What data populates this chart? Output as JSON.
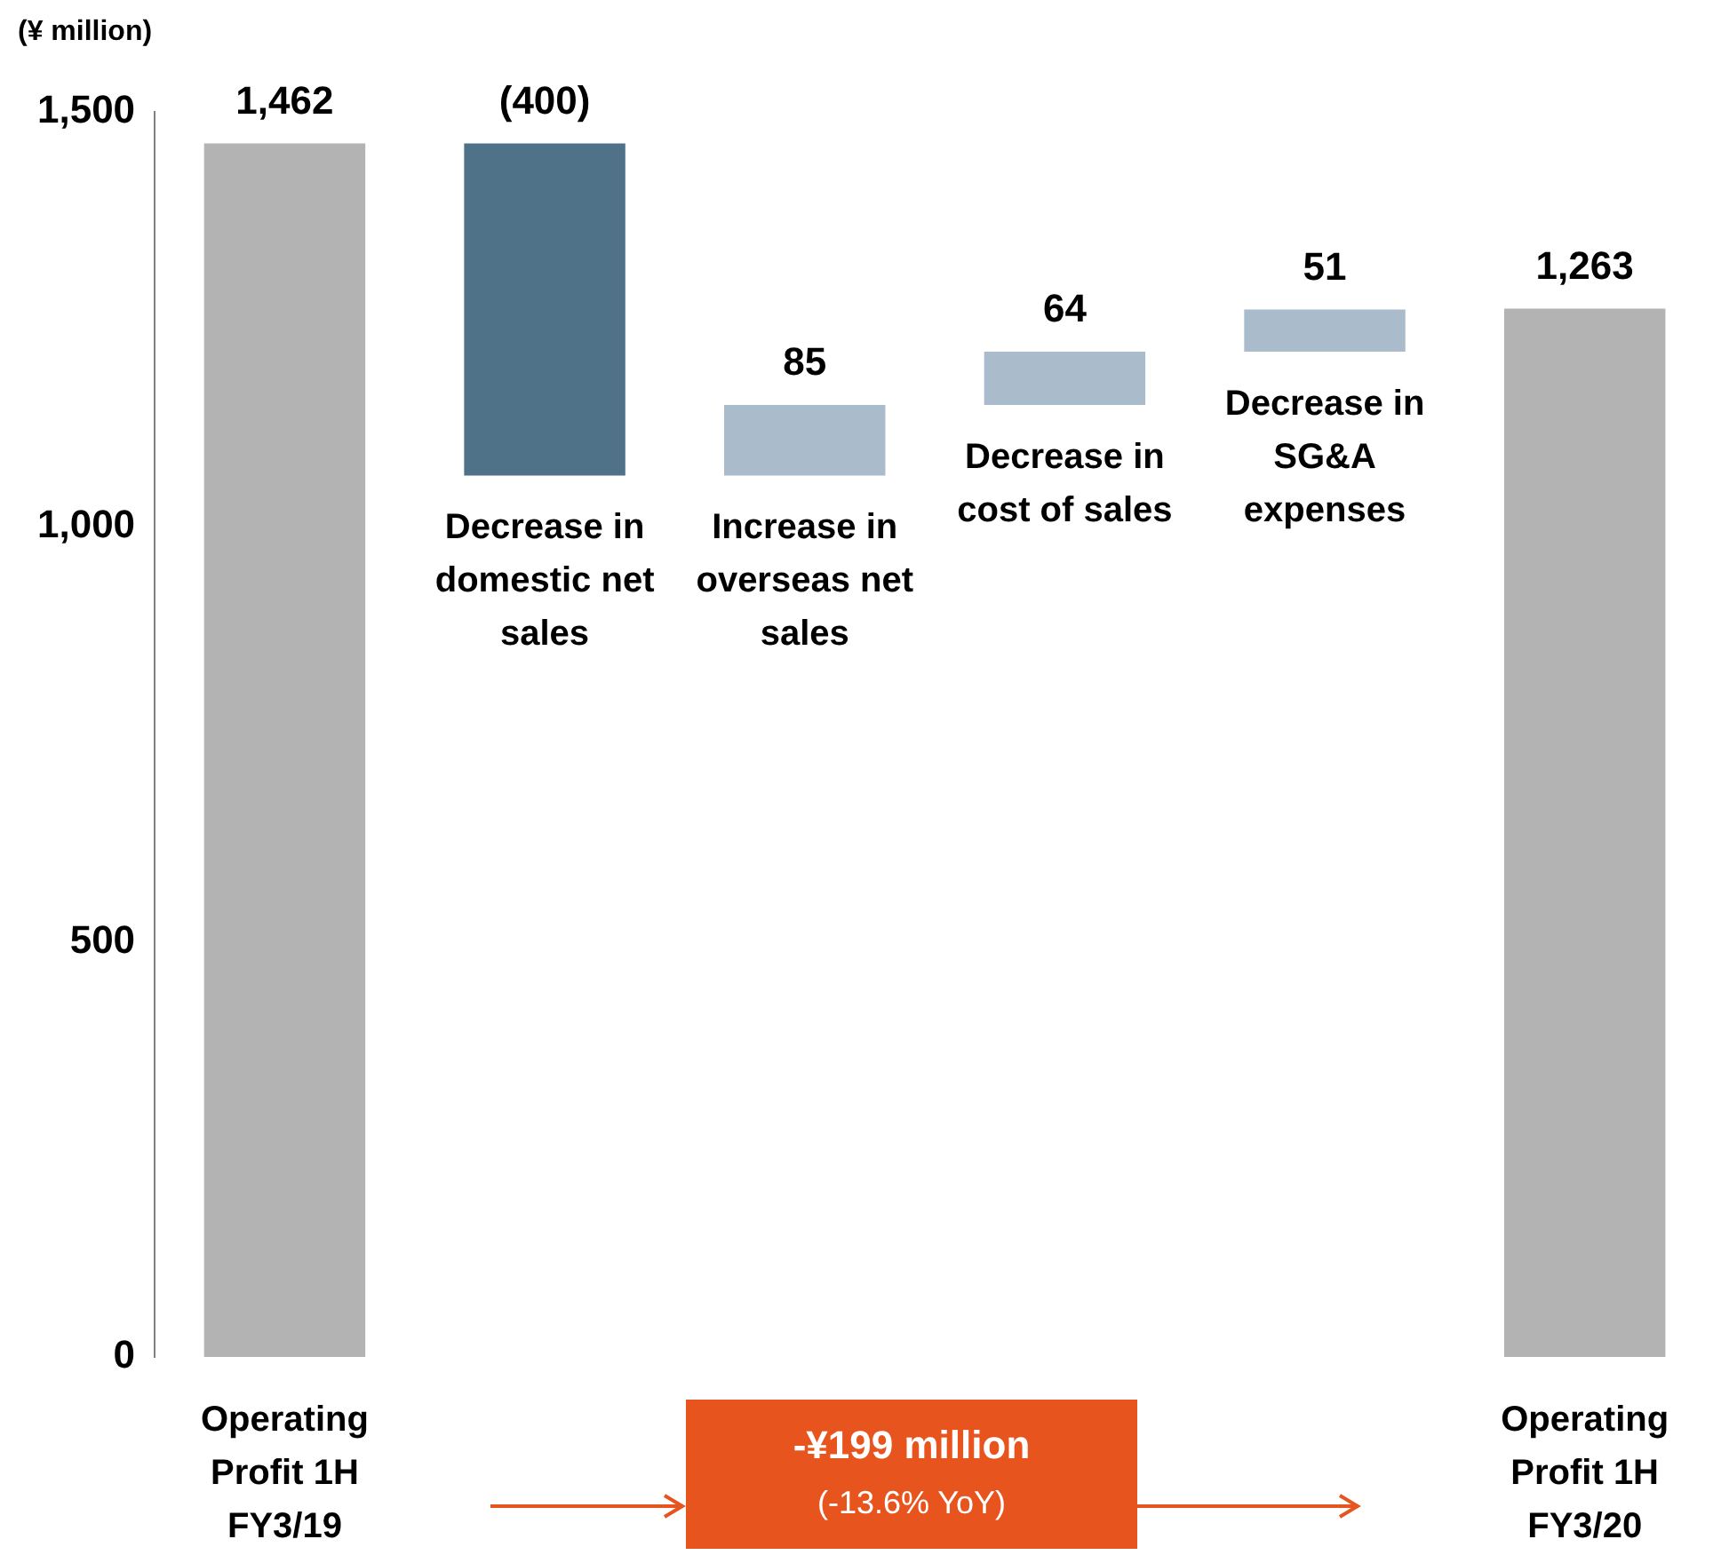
{
  "chart_data": {
    "type": "bar",
    "ylabel": "(¥ million)",
    "categories": [
      "Operating Profit 1H FY3/19",
      "Decrease in domestic net sales",
      "Increase in overseas net sales",
      "Decrease in cost of sales",
      "Decrease in SG&A expenses",
      "Operating Profit 1H FY3/20"
    ],
    "values": [
      1462,
      -400,
      85,
      64,
      51,
      1263
    ],
    "base": [
      0,
      1462,
      1062,
      1147,
      1211,
      0
    ],
    "colors": [
      "#b3b3b3",
      "#4f7289",
      "#aabccb",
      "#aabccb",
      "#aabccb",
      "#b3b3b3"
    ],
    "value_labels": [
      "1,462",
      "(400)",
      "85",
      "64",
      "51",
      "1,263"
    ],
    "ylim": [
      0,
      1500
    ],
    "yticks": [
      0,
      500,
      {
        "value": 1000,
        "label": "1,000"
      },
      {
        "value": 1500,
        "label": "1,500"
      }
    ],
    "annotations": [
      "-¥199 million",
      "(-13.6% YoY)"
    ]
  }
}
